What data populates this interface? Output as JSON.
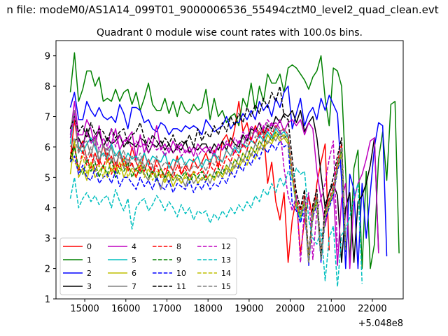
{
  "chart_data": {
    "type": "line",
    "title": "n file: modeM0/AS1A14_099T01_9000006536_55494cztM0_level2_quad_clean.evt",
    "subtitle": "Quadrant 0 module wise count rates with 100.0s bins.",
    "xlabel": "",
    "ylabel": "",
    "x_offset_label": "+5.048e8",
    "xlim": [
      14300,
      22750
    ],
    "ylim": [
      1,
      9.5
    ],
    "xticks": [
      15000,
      16000,
      17000,
      18000,
      19000,
      20000,
      21000,
      22000
    ],
    "yticks": [
      1,
      2,
      3,
      4,
      5,
      6,
      7,
      8,
      9
    ],
    "grid": false,
    "legend_position": "lower-left",
    "legend_columns": 4,
    "x_start": 14650,
    "x_step": 100,
    "series": [
      {
        "name": "0",
        "color": "#ff0000",
        "dash": "solid",
        "values": [
          5.6,
          6.9,
          5.9,
          6.2,
          5.6,
          5.3,
          5.8,
          5.4,
          6.1,
          5.5,
          5.7,
          5.2,
          5.9,
          5.4,
          5.3,
          6.0,
          5.5,
          5.2,
          5.8,
          5.4,
          5.1,
          5.6,
          5.3,
          5.0,
          5.5,
          5.2,
          5.7,
          5.1,
          5.4,
          5.2,
          5.6,
          5.3,
          5.5,
          5.8,
          5.4,
          5.9,
          5.3,
          6.2,
          6.4,
          6.0,
          6.6,
          7.5,
          6.5,
          6.8,
          6.2,
          6.7,
          6.4,
          6.6,
          4.8,
          5.5,
          4.2,
          3.6,
          4.5,
          2.2,
          3.6,
          4.3,
          2.5,
          3.6,
          4.4,
          3.6,
          4.8,
          5.5,
          6.1,
          2.6
        ]
      },
      {
        "name": "1",
        "color": "#008000",
        "dash": "solid",
        "values": [
          7.8,
          9.1,
          7.5,
          7.9,
          8.5,
          8.5,
          8.0,
          8.3,
          7.5,
          7.6,
          7.5,
          7.9,
          7.5,
          7.8,
          7.9,
          7.4,
          7.8,
          7.2,
          7.6,
          8.1,
          7.4,
          7.2,
          7.2,
          7.6,
          7.1,
          7.5,
          7.0,
          7.5,
          7.2,
          7.1,
          7.4,
          7.2,
          7.3,
          7.9,
          6.9,
          7.6,
          7.0,
          7.2,
          6.8,
          7.0,
          7.1,
          6.7,
          7.6,
          7.3,
          8.1,
          7.2,
          8.0,
          7.5,
          8.4,
          8.1,
          8.1,
          8.4,
          7.8,
          8.6,
          8.7,
          8.6,
          8.4,
          8.2,
          7.9,
          8.3,
          8.5,
          9.0,
          7.6,
          6.7,
          8.6,
          8.5,
          8.0,
          5.2,
          2.2,
          5.3,
          5.9,
          2.0,
          5.2,
          2.0,
          2.8,
          5.6,
          6.5,
          4.9,
          7.4,
          7.5,
          2.5
        ]
      },
      {
        "name": "2",
        "color": "#0000ff",
        "dash": "solid",
        "values": [
          7.3,
          7.8,
          6.9,
          6.9,
          7.5,
          7.2,
          7.0,
          7.3,
          7.0,
          6.9,
          7.0,
          6.8,
          7.4,
          7.1,
          6.6,
          7.3,
          7.3,
          7.2,
          6.8,
          6.9,
          6.6,
          6.5,
          6.8,
          6.7,
          6.4,
          6.6,
          6.6,
          6.5,
          6.7,
          6.6,
          6.7,
          6.6,
          6.4,
          6.9,
          6.7,
          6.5,
          6.6,
          6.7,
          7.0,
          6.6,
          6.8,
          6.8,
          7.1,
          6.9,
          7.2,
          6.9,
          7.5,
          7.2,
          7.4,
          7.0,
          7.6,
          7.3,
          7.8,
          8.0,
          6.6,
          7.1,
          7.6,
          6.7,
          7.1,
          7.3,
          6.9,
          7.6,
          7.2,
          7.7,
          7.4,
          7.1,
          4.9,
          2.0,
          5.1,
          4.6,
          2.0,
          4.8,
          3.0,
          4.5,
          6.0,
          6.8,
          6.7,
          2.4
        ]
      },
      {
        "name": "3",
        "color": "#000000",
        "dash": "solid",
        "values": [
          5.6,
          6.2,
          6.3,
          6.0,
          6.6,
          6.2,
          6.3,
          6.5,
          6.0,
          6.3,
          6.1,
          6.2,
          6.4,
          6.0,
          6.2,
          6.1,
          6.0,
          6.3,
          6.2,
          5.8,
          6.1,
          6.0,
          6.2,
          5.9,
          6.1,
          5.8,
          6.0,
          5.9,
          6.2,
          5.8,
          6.0,
          5.9,
          6.1,
          6.1,
          5.8,
          6.1,
          5.9,
          6.2,
          5.9,
          6.3,
          6.1,
          6.0,
          6.4,
          6.2,
          6.6,
          6.5,
          6.8,
          6.4,
          6.7,
          6.6,
          7.0,
          6.8,
          7.1,
          7.0,
          7.2,
          6.8,
          7.2,
          6.5,
          6.8,
          7.0,
          6.3,
          5.1,
          4.0,
          4.5,
          4.8,
          4.4,
          2.2,
          4.0,
          4.5,
          2.2,
          4.2,
          4.4,
          4.8,
          5.4,
          6.3,
          2.6
        ]
      },
      {
        "name": "4",
        "color": "#bf00bf",
        "dash": "solid",
        "values": [
          6.4,
          7.5,
          6.4,
          6.4,
          6.9,
          6.6,
          6.0,
          6.7,
          6.0,
          5.9,
          6.1,
          6.6,
          5.9,
          6.2,
          6.3,
          6.5,
          5.6,
          6.4,
          5.8,
          6.3,
          6.1,
          6.7,
          5.9,
          6.1,
          5.8,
          6.2,
          5.9,
          6.1,
          5.8,
          6.0,
          5.7,
          6.1,
          5.9,
          6.0,
          5.9,
          5.7,
          6.1,
          5.9,
          6.1,
          6.0,
          5.8,
          6.2,
          6.0,
          6.4,
          6.2,
          6.6,
          6.3,
          6.7,
          6.5,
          6.8,
          6.6,
          6.9,
          6.5,
          6.8,
          6.9,
          6.7,
          6.9,
          6.4,
          6.8,
          6.6,
          5.2,
          4.3,
          3.4,
          4.1,
          4.6,
          2.1,
          4.3,
          4.8,
          2.0,
          4.2,
          4.8,
          5.1,
          5.6,
          6.2,
          6.3,
          2.5
        ]
      },
      {
        "name": "5",
        "color": "#00bfbf",
        "dash": "solid",
        "values": [
          6.1,
          7.1,
          6.0,
          5.8,
          6.1,
          6.3,
          6.0,
          5.6,
          5.8,
          5.6,
          6.1,
          5.7,
          5.9,
          5.5,
          5.8,
          5.6,
          5.7,
          5.5,
          5.8,
          5.4,
          5.7,
          5.6,
          5.5,
          5.8,
          5.3,
          5.6,
          5.5,
          5.7,
          5.4,
          5.6,
          5.5,
          5.7,
          5.3,
          5.6,
          5.5,
          5.8,
          5.6,
          5.5,
          5.9,
          5.7,
          6.0,
          5.8,
          6.1,
          6.0,
          6.2,
          6.1,
          6.4,
          6.2,
          6.5,
          6.3,
          6.6,
          6.4,
          6.5,
          6.3,
          5.0,
          4.0,
          3.6,
          4.2,
          2.3,
          3.9,
          4.3,
          2.4,
          3.8,
          4.1,
          4.6,
          5.3,
          5.9,
          2.6
        ]
      },
      {
        "name": "6",
        "color": "#bfbf00",
        "dash": "solid",
        "values": [
          5.1,
          6.2,
          5.0,
          5.3,
          4.9,
          5.5,
          5.0,
          5.2,
          5.4,
          5.0,
          5.3,
          5.1,
          5.5,
          5.0,
          5.3,
          5.2,
          5.0,
          5.4,
          5.1,
          4.9,
          5.2,
          5.0,
          5.3,
          4.9,
          5.1,
          4.7,
          5.0,
          4.8,
          5.1,
          4.9,
          5.2,
          4.8,
          5.0,
          4.9,
          5.1,
          4.9,
          5.2,
          5.0,
          5.3,
          5.1,
          5.4,
          5.3,
          5.6,
          5.4,
          5.8,
          5.6,
          6.0,
          5.9,
          6.2,
          6.1,
          6.4,
          6.2,
          6.3,
          6.1,
          5.0,
          4.1,
          3.7,
          4.2,
          2.2,
          3.8,
          4.2,
          2.3,
          3.7,
          4.1,
          4.5,
          5.3,
          5.8,
          2.6
        ]
      },
      {
        "name": "7",
        "color": "#808080",
        "dash": "solid",
        "values": [
          6.6,
          7.2,
          5.8,
          6.1,
          6.2,
          5.7,
          6.3,
          5.5,
          6.1,
          5.7,
          6.0,
          5.4,
          5.8,
          5.3,
          5.6,
          5.4,
          5.2,
          5.6,
          5.1,
          4.9,
          5.4,
          5.0,
          4.6,
          5.1,
          4.8,
          5.2,
          4.9,
          5.0,
          4.7,
          5.1,
          4.8,
          5.0,
          4.9,
          5.1,
          4.8,
          5.2,
          5.0,
          5.3,
          5.1,
          5.5,
          5.3,
          5.7,
          5.5,
          5.9,
          5.7,
          6.1,
          5.9,
          6.3,
          6.1,
          6.4,
          6.2,
          6.5,
          6.3,
          6.4,
          5.1,
          4.2,
          3.8,
          4.3,
          2.2,
          4.0,
          4.4,
          2.3,
          3.9,
          4.2,
          4.6,
          5.4,
          6.0,
          2.6
        ]
      },
      {
        "name": "8",
        "color": "#ff0000",
        "dash": "dashed",
        "values": [
          5.8,
          6.0,
          5.2,
          5.9,
          5.4,
          5.8,
          5.2,
          5.6,
          5.3,
          5.8,
          5.1,
          5.5,
          5.3,
          5.7,
          5.2,
          5.5,
          5.0,
          5.4,
          5.2,
          5.6,
          5.1,
          5.4,
          5.0,
          5.3,
          5.2,
          5.0,
          5.4,
          5.1,
          5.3,
          5.0,
          5.2,
          5.1,
          5.3,
          5.0,
          5.4,
          5.2,
          5.5,
          5.3,
          5.7,
          5.5,
          5.9,
          5.7,
          6.1,
          5.9,
          6.3,
          6.1,
          6.5,
          6.3,
          6.6,
          6.4,
          6.7,
          6.5,
          6.6,
          6.4,
          5.2,
          4.3,
          3.9,
          4.4,
          2.3,
          4.0,
          4.4,
          2.4,
          3.9,
          4.3,
          4.7,
          5.5,
          6.1,
          2.7
        ]
      },
      {
        "name": "9",
        "color": "#008000",
        "dash": "dashed",
        "values": [
          5.5,
          6.0,
          5.3,
          5.1,
          5.6,
          5.2,
          5.5,
          5.0,
          5.4,
          5.1,
          5.6,
          5.0,
          5.3,
          5.2,
          5.5,
          5.0,
          5.3,
          5.1,
          5.4,
          5.0,
          5.2,
          4.9,
          5.3,
          5.0,
          5.2,
          4.9,
          5.1,
          5.0,
          5.2,
          4.8,
          5.1,
          5.0,
          5.2,
          4.9,
          5.1,
          5.0,
          5.3,
          5.1,
          5.4,
          5.2,
          5.6,
          5.4,
          5.8,
          5.6,
          6.0,
          5.8,
          6.2,
          6.0,
          6.4,
          6.2,
          6.5,
          6.3,
          6.4,
          6.2,
          5.0,
          4.1,
          3.7,
          4.2,
          2.2,
          3.8,
          4.3,
          2.3,
          3.8,
          4.1,
          4.5,
          5.3,
          5.9,
          2.6
        ]
      },
      {
        "name": "10",
        "color": "#0000ff",
        "dash": "dashed",
        "values": [
          5.5,
          5.7,
          5.1,
          5.4,
          5.0,
          4.9,
          5.3,
          4.8,
          5.0,
          5.1,
          4.8,
          5.2,
          4.7,
          5.0,
          5.0,
          4.8,
          4.6,
          5.0,
          4.7,
          4.9,
          4.6,
          5.0,
          4.7,
          4.6,
          4.9,
          4.5,
          4.8,
          4.7,
          4.6,
          4.9,
          4.5,
          4.8,
          4.6,
          4.9,
          4.6,
          4.8,
          4.7,
          5.0,
          4.8,
          5.2,
          5.0,
          5.4,
          5.2,
          5.6,
          5.4,
          5.8,
          5.6,
          6.0,
          5.8,
          6.1,
          5.9,
          6.2,
          6.0,
          6.1,
          4.1,
          3.9,
          3.5,
          4.0,
          2.1,
          3.7,
          4.1,
          2.2,
          3.6,
          4.0,
          4.4,
          5.2,
          5.7,
          2.5
        ]
      },
      {
        "name": "11",
        "color": "#000000",
        "dash": "dashed",
        "values": [
          6.6,
          7.0,
          6.5,
          6.7,
          6.3,
          6.8,
          6.4,
          6.6,
          6.5,
          6.2,
          6.6,
          6.3,
          6.5,
          6.6,
          6.1,
          6.4,
          6.5,
          6.8,
          6.3,
          6.0,
          6.4,
          6.2,
          6.0,
          6.3,
          6.1,
          6.4,
          6.0,
          6.2,
          6.1,
          6.4,
          6.0,
          6.6,
          6.2,
          6.5,
          6.3,
          6.7,
          6.4,
          6.8,
          6.5,
          7.0,
          6.7,
          7.1,
          6.8,
          7.3,
          7.0,
          7.4,
          7.1,
          7.6,
          7.3,
          7.8,
          7.5,
          8.0,
          7.0,
          6.9,
          5.6,
          4.5,
          4.0,
          4.6,
          2.3,
          4.1,
          4.6,
          2.4,
          4.1,
          4.5,
          5.0,
          5.7,
          6.3,
          2.7
        ]
      },
      {
        "name": "12",
        "color": "#bf00bf",
        "dash": "dashed",
        "values": [
          6.3,
          7.1,
          6.2,
          6.0,
          6.5,
          6.1,
          6.4,
          5.9,
          6.3,
          6.0,
          6.6,
          6.0,
          6.4,
          6.1,
          6.3,
          5.9,
          6.2,
          6.0,
          6.1,
          5.8,
          6.1,
          5.9,
          6.0,
          5.7,
          6.0,
          5.8,
          6.1,
          5.7,
          5.9,
          5.8,
          6.0,
          5.7,
          5.9,
          5.8,
          6.0,
          5.8,
          6.1,
          5.9,
          6.2,
          6.0,
          6.3,
          6.1,
          6.5,
          6.3,
          6.7,
          6.5,
          6.8,
          6.6,
          6.9,
          6.7,
          6.8,
          6.6,
          5.3,
          4.4,
          3.9,
          4.4,
          2.2,
          4.0,
          4.5,
          2.3,
          3.9,
          4.3,
          4.8,
          5.6,
          6.2,
          2.6
        ]
      },
      {
        "name": "13",
        "color": "#00bfbf",
        "dash": "dashed",
        "values": [
          4.3,
          5.0,
          4.0,
          4.3,
          4.5,
          4.2,
          4.4,
          4.1,
          4.3,
          4.4,
          4.0,
          4.6,
          4.2,
          3.9,
          4.3,
          3.3,
          4.0,
          4.2,
          4.3,
          3.9,
          4.1,
          4.4,
          4.2,
          3.9,
          4.2,
          4.0,
          3.7,
          4.1,
          3.8,
          4.0,
          3.6,
          3.9,
          3.8,
          3.9,
          3.5,
          3.8,
          3.6,
          3.9,
          3.7,
          4.0,
          3.8,
          4.1,
          3.9,
          4.2,
          4.0,
          4.4,
          4.2,
          4.6,
          4.4,
          4.8,
          4.5,
          5.0,
          4.7,
          5.2,
          4.9,
          5.3,
          5.1,
          5.2,
          3.6,
          3.0,
          2.8,
          3.3,
          1.6,
          3.0,
          3.4,
          1.4,
          3.1,
          3.3,
          3.7,
          4.3,
          4.8,
          1.5
        ]
      },
      {
        "name": "14",
        "color": "#bfbf00",
        "dash": "dashed",
        "values": [
          5.8,
          5.5,
          5.3,
          5.7,
          5.1,
          5.5,
          5.2,
          5.4,
          5.0,
          5.6,
          5.2,
          5.4,
          5.1,
          5.6,
          5.0,
          5.3,
          5.2,
          5.5,
          5.0,
          5.3,
          4.9,
          5.2,
          5.1,
          4.8,
          5.2,
          4.9,
          5.1,
          4.8,
          5.0,
          4.9,
          5.2,
          4.8,
          5.0,
          4.9,
          5.1,
          4.9,
          5.2,
          5.0,
          5.4,
          5.2,
          5.6,
          5.4,
          5.8,
          5.6,
          6.0,
          5.8,
          6.2,
          6.0,
          6.4,
          6.2,
          6.5,
          6.3,
          6.4,
          6.2,
          5.0,
          4.1,
          3.7,
          4.2,
          2.2,
          3.8,
          4.2,
          2.3,
          3.7,
          4.1,
          4.5,
          5.3,
          5.8,
          2.6
        ]
      },
      {
        "name": "15",
        "color": "#808080",
        "dash": "dashed",
        "values": [
          6.0,
          6.3,
          5.8,
          6.1,
          5.6,
          6.0,
          5.5,
          5.9,
          5.7,
          6.0,
          5.5,
          5.8,
          5.6,
          5.9,
          5.4,
          5.7,
          5.5,
          5.8,
          5.3,
          5.6,
          5.4,
          5.7,
          5.3,
          5.5,
          5.4,
          5.2,
          5.6,
          5.3,
          5.5,
          5.2,
          5.4,
          5.3,
          5.5,
          5.2,
          5.6,
          5.4,
          5.7,
          5.5,
          5.9,
          5.7,
          6.1,
          5.9,
          6.3,
          6.1,
          6.5,
          6.3,
          6.6,
          6.4,
          6.8,
          6.5,
          6.7,
          6.5,
          6.6,
          6.4,
          5.1,
          4.2,
          3.8,
          4.3,
          2.2,
          3.9,
          4.4,
          2.3,
          3.8,
          4.2,
          4.6,
          5.4,
          6.0,
          2.6
        ]
      }
    ]
  }
}
